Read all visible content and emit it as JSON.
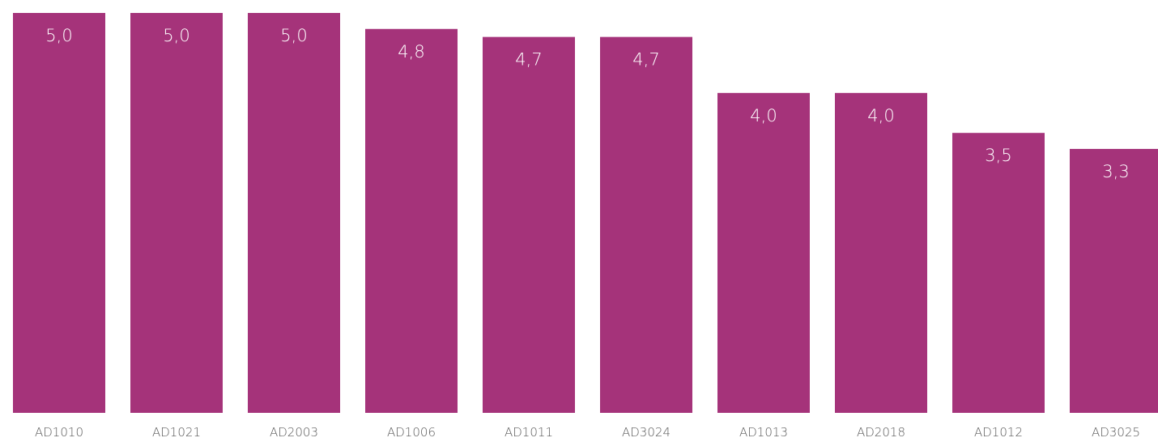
{
  "chart_data": {
    "type": "bar",
    "categories": [
      "AD1010",
      "AD1021",
      "AD2003",
      "AD1006",
      "AD1011",
      "AD3024",
      "AD1013",
      "AD2018",
      "AD1012",
      "AD3025"
    ],
    "values": [
      5.0,
      5.0,
      5.0,
      4.8,
      4.7,
      4.7,
      4.0,
      4.0,
      3.5,
      3.3
    ],
    "value_labels": [
      "5,0",
      "5,0",
      "5,0",
      "4,8",
      "4,7",
      "4,7",
      "4,0",
      "4,0",
      "3,5",
      "3,3"
    ],
    "title": "",
    "xlabel": "",
    "ylabel": "",
    "ylim": [
      0,
      5.0
    ],
    "grid": false,
    "legend": "none",
    "bar_color": "#A5337A",
    "value_label_color": "#FFFFFF",
    "tick_label_color": "#595959"
  }
}
